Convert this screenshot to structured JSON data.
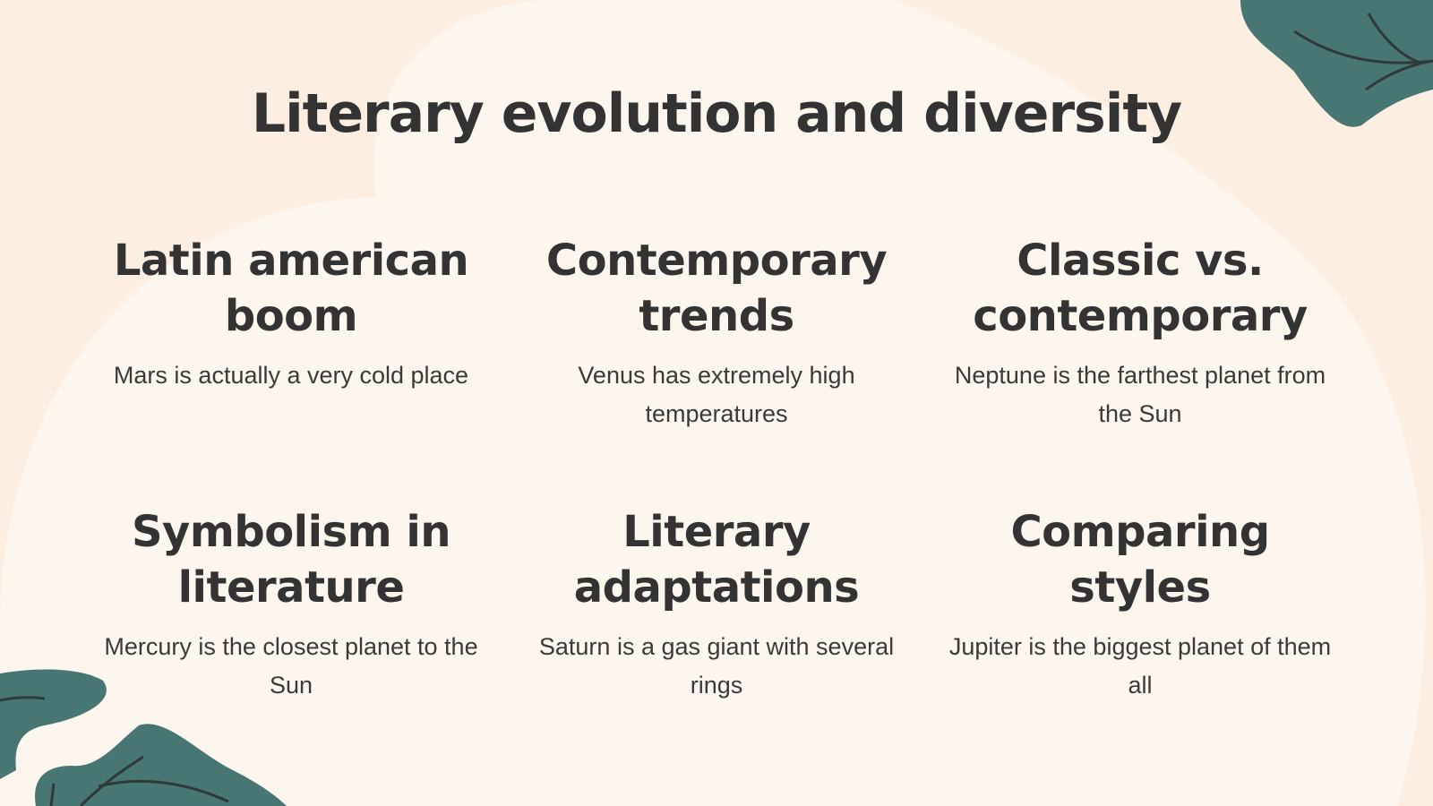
{
  "slide": {
    "title": "Literary evolution and diversity",
    "items": [
      {
        "heading": "Latin american boom",
        "text": "Mars is actually a very cold place"
      },
      {
        "heading": "Contemporary trends",
        "text": "Venus has extremely high temperatures"
      },
      {
        "heading": "Classic vs. contemporary",
        "text": "Neptune is the farthest planet from the Sun"
      },
      {
        "heading": "Symbolism in literature",
        "text": "Mercury is the closest planet to the Sun"
      },
      {
        "heading": "Literary adaptations",
        "text": "Saturn is a gas giant with several rings"
      },
      {
        "heading": "Comparing styles",
        "text": "Jupiter is the biggest planet of them all"
      }
    ]
  },
  "colors": {
    "background": "#fcefe2",
    "blob": "#fdf6ee",
    "leaf": "#477673",
    "text": "#333333"
  }
}
